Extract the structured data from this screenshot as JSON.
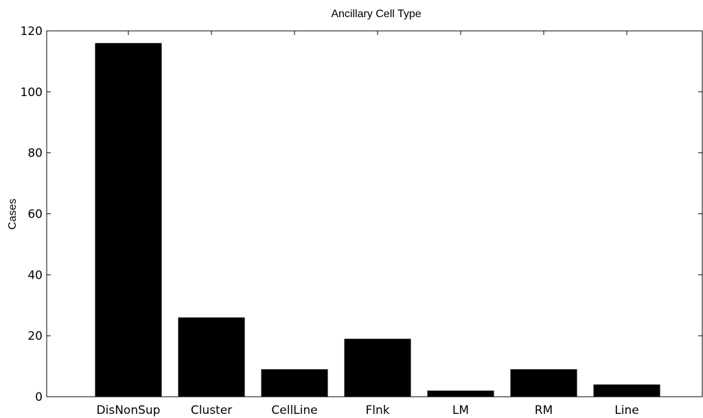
{
  "chart_data": {
    "type": "bar",
    "title": "Ancillary Cell Type",
    "xlabel": "",
    "ylabel": "Cases",
    "categories": [
      "DisNonSup",
      "Cluster",
      "CellLine",
      "Flnk",
      "LM",
      "RM",
      "Line"
    ],
    "values": [
      116,
      26,
      9,
      19,
      2,
      9,
      4
    ],
    "ylim": [
      0,
      120
    ],
    "yticks": [
      0,
      20,
      40,
      60,
      80,
      100,
      120
    ],
    "grid": false,
    "bar_color": "#000000"
  }
}
